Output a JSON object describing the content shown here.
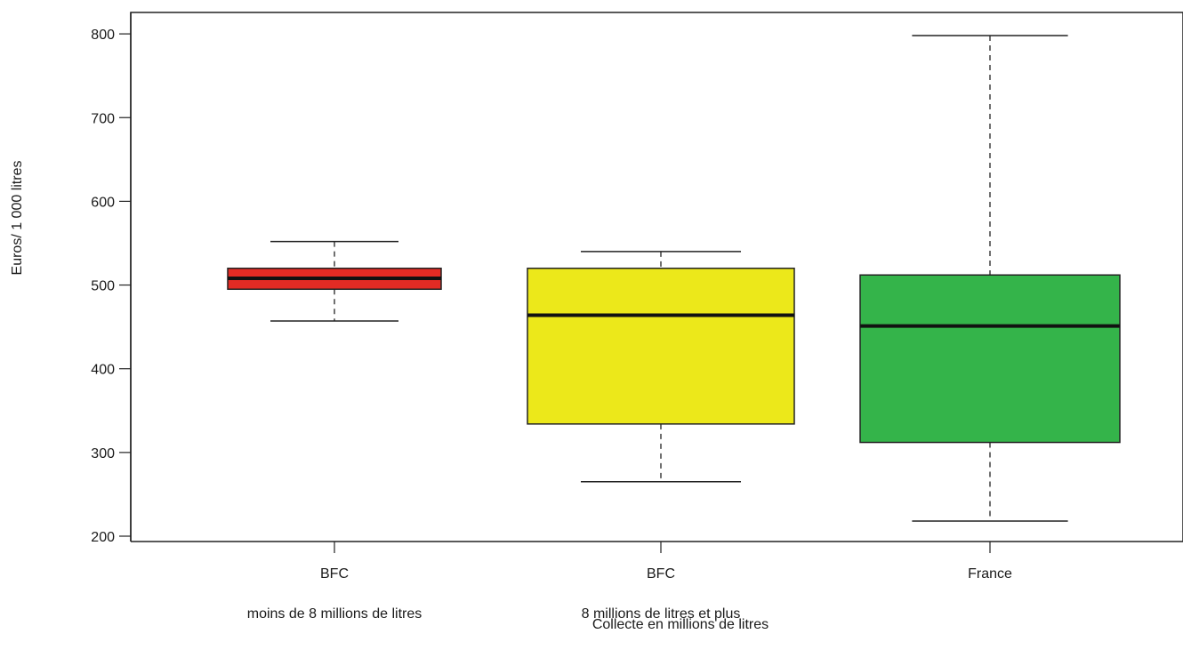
{
  "chart_data": {
    "type": "boxplot",
    "title": "",
    "xlabel": "Collecte en millions de litres",
    "ylabel": "Euros/ 1 000 litres",
    "ylim": [
      200,
      800
    ],
    "yticks": [
      200,
      300,
      400,
      500,
      600,
      700,
      800
    ],
    "grid": false,
    "categories": [
      {
        "label": "BFC",
        "sublabel": "moins de 8 millions de litres",
        "color": "#e32b24",
        "min": 457,
        "q1": 495,
        "median": 508,
        "q3": 520,
        "max": 552
      },
      {
        "label": "BFC",
        "sublabel": "8 millions de litres et plus",
        "color": "#ece81a",
        "min": 265,
        "q1": 334,
        "median": 464,
        "q3": 520,
        "max": 540
      },
      {
        "label": "France",
        "sublabel": "",
        "color": "#34b44a",
        "min": 218,
        "q1": 312,
        "median": 451,
        "q3": 512,
        "max": 798
      }
    ]
  }
}
